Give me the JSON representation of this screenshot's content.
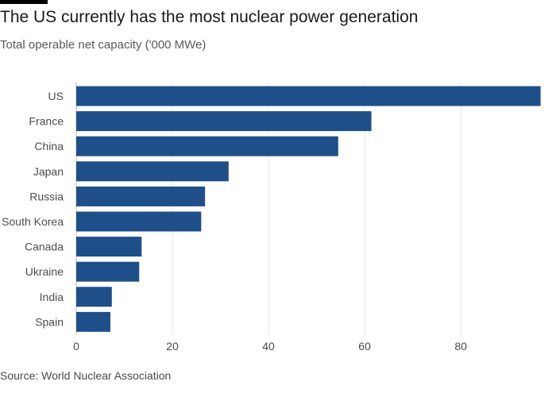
{
  "header": {
    "title": "The US currently has the most nuclear power generation",
    "subtitle": "Total operable net capacity ('000 MWe)"
  },
  "footer": {
    "source": "Source: World Nuclear Association"
  },
  "colors": {
    "bar": "#1e4f8a",
    "top_rule": "#000000"
  },
  "chart_data": {
    "type": "bar",
    "orientation": "horizontal",
    "title": "The US currently has the most nuclear power generation",
    "subtitle": "Total operable net capacity ('000 MWe)",
    "categories": [
      "US",
      "France",
      "China",
      "Japan",
      "Russia",
      "South Korea",
      "Canada",
      "Ukraine",
      "India",
      "Spain"
    ],
    "values": [
      96.6,
      61.4,
      54.5,
      31.7,
      26.8,
      26.0,
      13.6,
      13.1,
      7.4,
      7.1
    ],
    "xticks": [
      0,
      20,
      40,
      60,
      80
    ],
    "xlim": [
      0,
      97
    ],
    "grid": true,
    "legend": "none"
  }
}
